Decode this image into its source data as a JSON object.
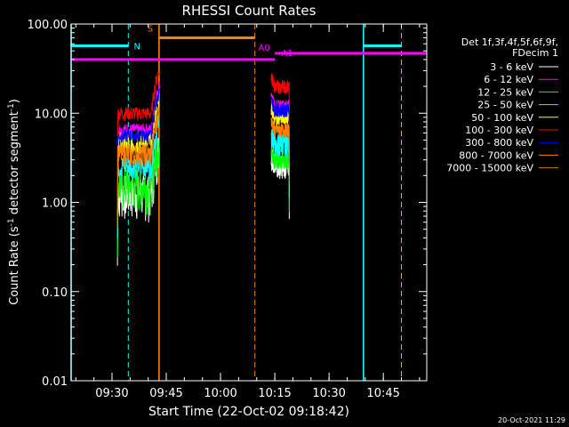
{
  "chart_data": {
    "type": "line",
    "title": "RHESSI Count Rates",
    "xlabel": "Start Time (22-Oct-02 09:18:42)",
    "ylabel": "Count Rate (s",
    "ylabel_sup1": "-1",
    "ylabel_mid": " detector segment",
    "ylabel_sup2": "-1",
    "ylabel_end": ")",
    "y_scale": "log",
    "ylim": [
      0.01,
      100
    ],
    "xlim": [
      "09:18:42",
      "10:57:00"
    ],
    "x_ticks": [
      "09:30",
      "09:45",
      "10:00",
      "10:15",
      "10:30",
      "10:45"
    ],
    "y_ticks": [
      "0.01",
      "0.10",
      "1.00",
      "10.00",
      "100.00"
    ],
    "legend_header": [
      "Det 1f,3f,4f,5f,6f,9f,",
      "FDecim 1"
    ],
    "legend_position": "right",
    "timestamp": "20-Oct-2021 11:29",
    "series": [
      {
        "name": "3 - 6 keV",
        "color": "#ffffff"
      },
      {
        "name": "6 - 12 keV",
        "color": "#ff00ff"
      },
      {
        "name": "12 - 25 keV",
        "color": "#00ff00"
      },
      {
        "name": "25 - 50 keV",
        "color": "#00ffff"
      },
      {
        "name": "50 - 100 keV",
        "color": "#ffff00"
      },
      {
        "name": "100 - 300 keV",
        "color": "#ff0000"
      },
      {
        "name": "300 - 800 keV",
        "color": "#0000ff"
      },
      {
        "name": "800 - 7000 keV",
        "color": "#ff8000"
      },
      {
        "name": "7000 - 15000 keV",
        "color": "#c08000"
      }
    ],
    "segments": [
      {
        "start": "09:31:30",
        "end": "09:43:00",
        "levels": {
          "3 - 6 keV": 1.3,
          "6 - 12 keV": 6.5,
          "12 - 25 keV": 1.6,
          "25 - 50 keV": 2.6,
          "50 - 100 keV": 4.7,
          "100 - 300 keV": 10.0,
          "300 - 800 keV": 5.6,
          "800 - 7000 keV": 3.5
        }
      },
      {
        "start": "10:14:00",
        "end": "10:19:00",
        "levels": {
          "3 - 6 keV": 2.6,
          "6 - 12 keV": 12.0,
          "12 - 25 keV": 3.1,
          "25 - 50 keV": 4.6,
          "50 - 100 keV": 9.0,
          "100 - 300 keV": 20.0,
          "300 - 800 keV": 11.0,
          "800 - 7000 keV": 6.5
        }
      }
    ],
    "flags": [
      {
        "label": "N",
        "color": "#00ffff",
        "value": 57,
        "ranges": [
          [
            "09:18:42",
            "09:34:30"
          ],
          [
            "10:39:30",
            "10:50:00"
          ]
        ]
      },
      {
        "label": "S",
        "color": "#ff8000",
        "value": 70,
        "ranges": [
          [
            "09:43:00",
            "10:09:30"
          ]
        ]
      },
      {
        "label": "A0",
        "color": "#ff00ff",
        "value": 40,
        "ranges": [
          [
            "09:18:42",
            "10:15:00"
          ]
        ]
      },
      {
        "label": "A1",
        "color": "#ff00ff",
        "value": 47,
        "ranges": [
          [
            "10:15:00",
            "10:57:00"
          ]
        ]
      }
    ],
    "vlines": [
      {
        "time": "09:18:42",
        "color": "#00ffff",
        "style": "solid"
      },
      {
        "time": "09:34:30",
        "color": "#00ffff",
        "style": "dashed"
      },
      {
        "time": "09:43:00",
        "color": "#ff8000",
        "style": "solid"
      },
      {
        "time": "10:09:30",
        "color": "#ff8000",
        "style": "dashed"
      },
      {
        "time": "10:39:30",
        "color": "#00ffff",
        "style": "solid"
      },
      {
        "time": "10:50:00",
        "color": "#00ffff",
        "style": "dashed"
      }
    ]
  }
}
